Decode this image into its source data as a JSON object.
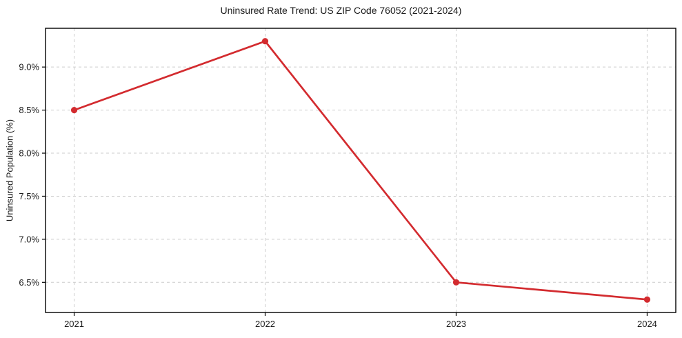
{
  "chart_data": {
    "type": "line",
    "title": "Uninsured Rate Trend: US ZIP Code 76052 (2021-2024)",
    "xlabel": "",
    "ylabel": "Uninsured Population (%)",
    "x": [
      2021,
      2022,
      2023,
      2024
    ],
    "values": [
      8.5,
      9.3,
      6.5,
      6.3
    ],
    "xlim": [
      2020.85,
      2024.15
    ],
    "ylim": [
      6.15,
      9.45
    ],
    "xticks": [
      {
        "value": 2021,
        "label": "2021"
      },
      {
        "value": 2022,
        "label": "2022"
      },
      {
        "value": 2023,
        "label": "2023"
      },
      {
        "value": 2024,
        "label": "2024"
      }
    ],
    "yticks": [
      {
        "value": 6.5,
        "label": "6.5%"
      },
      {
        "value": 7.0,
        "label": "7.0%"
      },
      {
        "value": 7.5,
        "label": "7.5%"
      },
      {
        "value": 8.0,
        "label": "8.0%"
      },
      {
        "value": 8.5,
        "label": "8.5%"
      },
      {
        "value": 9.0,
        "label": "9.0%"
      }
    ],
    "grid": true,
    "legend": false,
    "colors": {
      "line": "#d32b2f",
      "marker": "#d32b2f",
      "grid": "#cccccc",
      "spine": "#000000",
      "text": "#1a1a1a"
    }
  }
}
